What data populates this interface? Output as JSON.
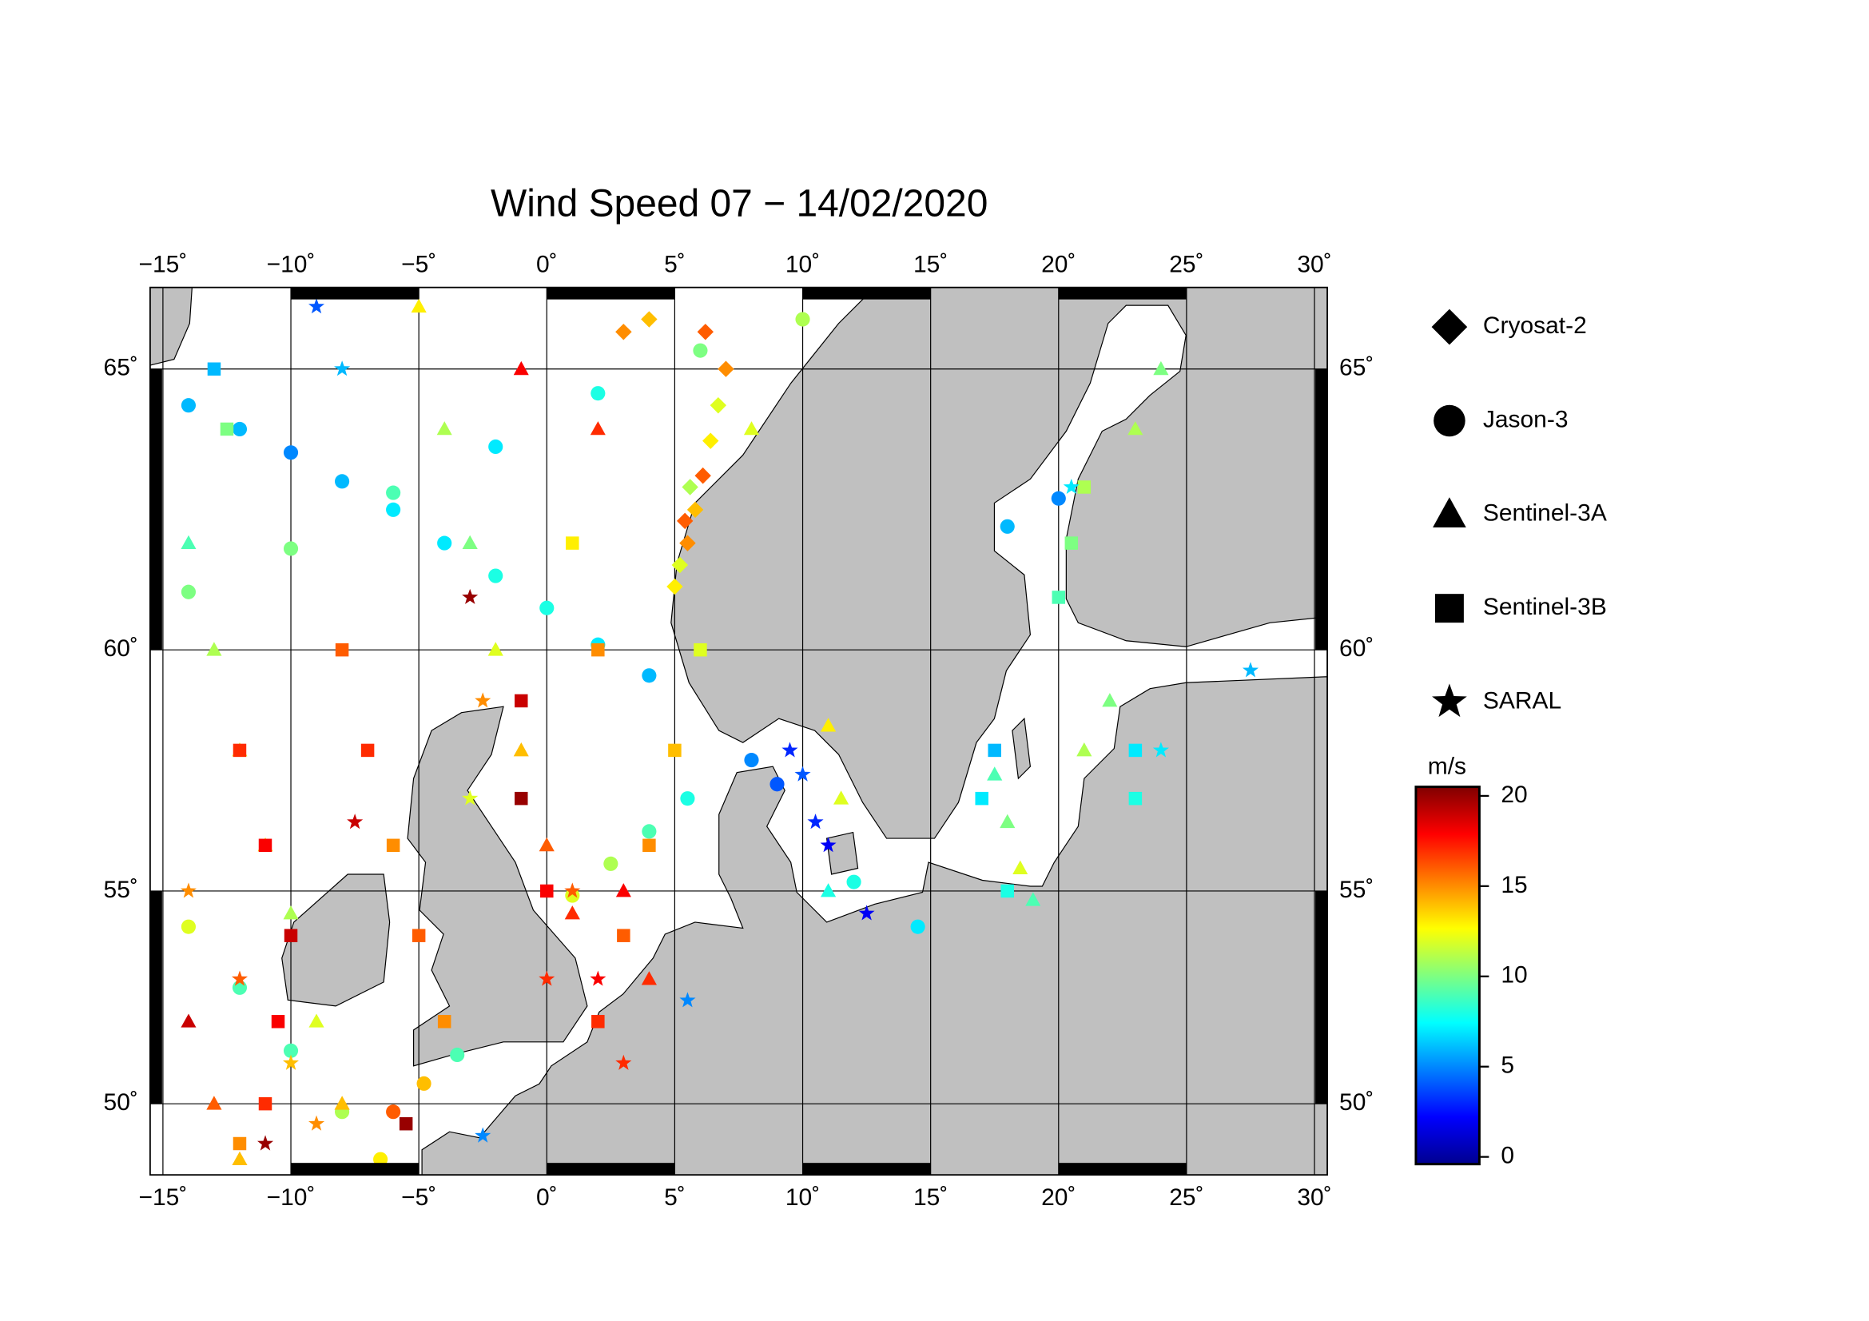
{
  "chart_data": {
    "type": "scatter",
    "title": "Wind Speed 07 − 14/02/2020",
    "projection": "mercator",
    "xlim": [
      -15.5,
      30.5
    ],
    "ylim": [
      48.2,
      66.3
    ],
    "xticks": [
      {
        "value": -15,
        "label": "−15˚"
      },
      {
        "value": -10,
        "label": "−10˚"
      },
      {
        "value": -5,
        "label": "−5˚"
      },
      {
        "value": 0,
        "label": "0˚"
      },
      {
        "value": 5,
        "label": "5˚"
      },
      {
        "value": 10,
        "label": "10˚"
      },
      {
        "value": 15,
        "label": "15˚"
      },
      {
        "value": 20,
        "label": "20˚"
      },
      {
        "value": 25,
        "label": "25˚"
      },
      {
        "value": 30,
        "label": "30˚"
      }
    ],
    "yticks": [
      {
        "value": 50,
        "label": "50˚"
      },
      {
        "value": 55,
        "label": "55˚"
      },
      {
        "value": 60,
        "label": "60˚"
      },
      {
        "value": 65,
        "label": "65˚"
      }
    ],
    "grid": true,
    "series": [
      {
        "name": "Cryosat-2",
        "marker": "diamond",
        "x": [
          5.5,
          5.8,
          6.1,
          6.4,
          6.7,
          7.0,
          5.0,
          5.2,
          5.4,
          5.6,
          3,
          4,
          6.2
        ],
        "y": [
          62.0,
          62.6,
          63.2,
          63.8,
          64.4,
          65.0,
          61.2,
          61.6,
          62.4,
          63.0,
          65.6,
          65.8,
          65.6
        ],
        "values": [
          15,
          14,
          16,
          13,
          12,
          15,
          13,
          12,
          16,
          11,
          15,
          14,
          16
        ]
      },
      {
        "name": "Jason-3",
        "marker": "circle",
        "x": [
          -14,
          -12,
          -10,
          -8,
          -6,
          -4,
          -2,
          0,
          2,
          4,
          -14,
          -10,
          -6,
          -2,
          2,
          6,
          10,
          -14,
          -12,
          -10,
          -8,
          -6.5,
          5.5,
          4,
          2.5,
          1,
          8,
          9,
          12,
          14.5,
          18,
          20,
          -6,
          -4.8,
          -3.5
        ],
        "y": [
          64.4,
          64.0,
          63.6,
          63.1,
          62.6,
          62.0,
          61.4,
          60.8,
          60.1,
          59.5,
          61.1,
          61.9,
          62.9,
          63.7,
          64.6,
          65.3,
          65.8,
          54.2,
          52.8,
          51.3,
          49.8,
          48.6,
          57.0,
          56.3,
          55.6,
          54.9,
          57.8,
          57.3,
          55.2,
          54.2,
          62.3,
          62.8,
          49.8,
          50.5,
          51.2
        ],
        "values": [
          6,
          6,
          5,
          6,
          7,
          7,
          8,
          8,
          7,
          6,
          10,
          10,
          9,
          7,
          8,
          10,
          11,
          12,
          9,
          9,
          11,
          13,
          8,
          9,
          11,
          12,
          5,
          4,
          8,
          7,
          6,
          5,
          16,
          14,
          9
        ]
      },
      {
        "name": "Sentinel-3A",
        "marker": "triangle",
        "x": [
          -14,
          -13,
          -12,
          -11,
          -10,
          -9,
          -8,
          -5,
          -4,
          -3,
          -2,
          -1,
          0,
          1,
          3,
          4,
          17.5,
          18,
          18.5,
          19,
          21,
          22,
          11,
          11.5,
          11,
          -14,
          -13,
          -12,
          23,
          24,
          -1,
          2,
          8
        ],
        "y": [
          62,
          60,
          58,
          56,
          54.5,
          52,
          50,
          66,
          64,
          62,
          60,
          58,
          56,
          54.5,
          55,
          53,
          57.5,
          56.5,
          55.5,
          54.8,
          58,
          59,
          58.5,
          57,
          55,
          52,
          50,
          48.6,
          64,
          65,
          65,
          64,
          64
        ],
        "values": [
          9,
          11,
          12,
          13,
          11,
          12,
          14,
          13,
          11,
          10,
          12,
          14,
          16,
          17,
          18,
          17,
          9,
          10,
          12,
          9,
          11,
          10,
          13,
          12,
          8,
          19,
          16,
          14,
          11,
          10,
          18,
          17,
          12
        ]
      },
      {
        "name": "Sentinel-3B",
        "marker": "square",
        "x": [
          -12,
          -11,
          -10,
          -10.5,
          -11,
          -12,
          -8,
          -7,
          -6,
          -5,
          -4,
          -5.5,
          -1,
          -1,
          0,
          2,
          3,
          4,
          5,
          6,
          17,
          17.5,
          18,
          20,
          20.5,
          21,
          23,
          23,
          -13,
          -12.5,
          2,
          1
        ],
        "y": [
          58,
          56,
          54,
          52,
          50,
          49,
          60,
          58,
          56,
          54,
          52,
          49.5,
          59,
          57,
          55,
          52,
          54,
          56,
          58,
          60,
          57,
          58,
          55,
          61,
          62,
          63,
          57,
          58,
          65,
          64,
          60,
          62
        ],
        "values": [
          17,
          18,
          19,
          18,
          17,
          15,
          16,
          17,
          15,
          16,
          15,
          20,
          19,
          20,
          18,
          17,
          16,
          15,
          14,
          12,
          7,
          6,
          8,
          9,
          10,
          11,
          8,
          7,
          6,
          10,
          15,
          13
        ]
      },
      {
        "name": "SARAL",
        "marker": "star",
        "x": [
          -14,
          -12,
          -10,
          -9,
          -3,
          -2.5,
          -3,
          0,
          1,
          2,
          3,
          9.5,
          10,
          10.5,
          11,
          12.5,
          -8,
          -9,
          20.5,
          27.5,
          24,
          5.5,
          -2.5,
          -7.5,
          -11
        ],
        "y": [
          55,
          53,
          51,
          49.5,
          61,
          59,
          57,
          53,
          55,
          53,
          51,
          58,
          57.5,
          56.5,
          56,
          54.5,
          65,
          66,
          63,
          59.6,
          58,
          52.5,
          49.2,
          56.5,
          49
        ],
        "values": [
          15,
          16,
          14,
          15,
          20,
          15,
          12,
          17,
          16,
          18,
          17,
          3,
          4,
          3,
          2,
          2,
          6,
          4,
          7,
          6,
          7,
          5,
          5,
          19,
          20
        ]
      }
    ],
    "colorbar": {
      "label": "m/s",
      "colormap": "jet",
      "lim": [
        -0.4,
        20.5
      ],
      "ticks": [
        0,
        5,
        10,
        15,
        20
      ]
    }
  }
}
